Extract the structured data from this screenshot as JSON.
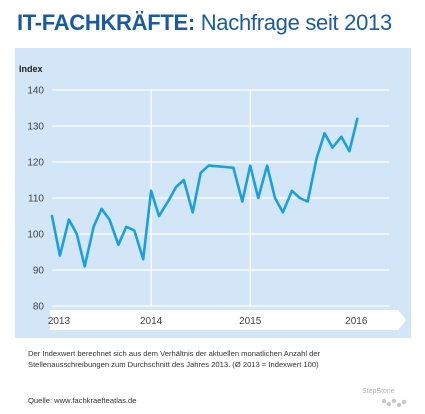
{
  "header": {
    "title_bold": "IT-FACHKRÄFTE:",
    "title_rest": " Nachfrage seit 2013"
  },
  "chart_data": {
    "type": "line",
    "ylabel": "Index",
    "ylim": [
      80,
      140
    ],
    "yticks": [
      80,
      90,
      100,
      110,
      120,
      130,
      140
    ],
    "xlim": [
      2013,
      2016.4
    ],
    "xticks": [
      {
        "label": "2013",
        "value": 2013.07
      },
      {
        "label": "2014",
        "value": 2014.0
      },
      {
        "label": "2015",
        "value": 2015.0
      },
      {
        "label": "2016",
        "value": 2016.07
      }
    ],
    "grid": true,
    "line_color": "#1ba0dc",
    "series": [
      {
        "x": [
          2013.0,
          2013.08,
          2013.17,
          2013.25,
          2013.33,
          2013.42,
          2013.5,
          2013.58,
          2013.67,
          2013.75,
          2013.83,
          2013.92,
          2014.0,
          2014.08,
          2014.17,
          2014.25,
          2014.33,
          2014.42,
          2014.5,
          2014.58,
          2014.67,
          2014.75,
          2014.83,
          2014.92,
          2015.0,
          2015.08,
          2015.17,
          2015.25,
          2015.33,
          2015.42,
          2015.5,
          2015.58,
          2015.67,
          2015.75,
          2015.83,
          2015.92,
          2016.0,
          2016.08
        ],
        "values": [
          105,
          94,
          104,
          100,
          91,
          102,
          107,
          104,
          97,
          102,
          101,
          93,
          112,
          105,
          109,
          113,
          115,
          106,
          117,
          119,
          118.8,
          118.6,
          118.4,
          109,
          119,
          110,
          119,
          110,
          106,
          112,
          110,
          109,
          121,
          128,
          124,
          127,
          123,
          132
        ]
      }
    ]
  },
  "footnote": "Der Indexwert berechnet sich aus dem Verhältnis der aktuellen monatlichen Anzahl der Stellenausschreibungen zum Durchschnitt des Jahres 2013. (Ø 2013 = Indexwert 100)",
  "source": "Quelle: www.fachkraefteatlas.de",
  "brand": "StepStone"
}
